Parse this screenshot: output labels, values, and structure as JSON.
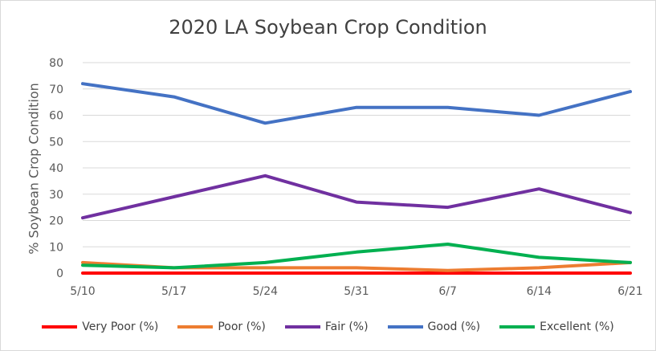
{
  "chart_data": {
    "type": "line",
    "title": "2020 LA Soybean Crop Condition",
    "xlabel": "",
    "ylabel": "% Soybean Crop Condition",
    "categories": [
      "5/10",
      "5/17",
      "5/24",
      "5/31",
      "6/7",
      "6/14",
      "6/21"
    ],
    "ylim": [
      0,
      80
    ],
    "yticks": [
      0,
      10,
      20,
      30,
      40,
      50,
      60,
      70,
      80
    ],
    "grid": true,
    "legend_position": "bottom",
    "series": [
      {
        "name": "Very Poor (%)",
        "color": "#ff0000",
        "values": [
          0,
          0,
          0,
          0,
          0,
          0,
          0
        ]
      },
      {
        "name": "Poor (%)",
        "color": "#ed7d31",
        "values": [
          4,
          2,
          2,
          2,
          1,
          2,
          4
        ]
      },
      {
        "name": "Fair (%)",
        "color": "#7030a0",
        "values": [
          21,
          29,
          37,
          27,
          25,
          32,
          23
        ]
      },
      {
        "name": "Good (%)",
        "color": "#4472c4",
        "values": [
          72,
          67,
          57,
          63,
          63,
          60,
          69
        ]
      },
      {
        "name": "Excellent (%)",
        "color": "#00b050",
        "values": [
          3,
          2,
          4,
          8,
          11,
          6,
          4
        ]
      }
    ]
  }
}
